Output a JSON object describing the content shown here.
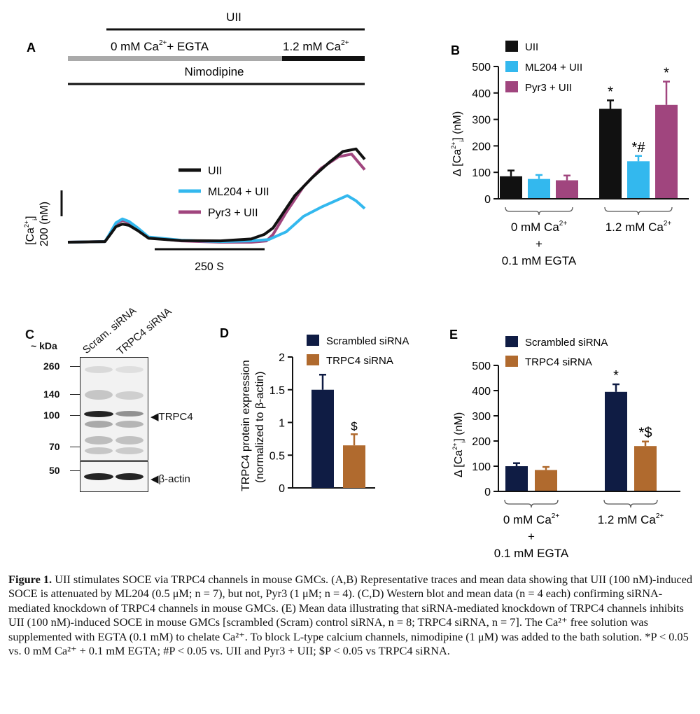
{
  "colors": {
    "uii": "#111111",
    "ml204": "#33b8ee",
    "pyr3": "#a0457e",
    "scrambled": "#0f1c44",
    "trpc4": "#b06a2e",
    "gray_bar": "#aaaaaa"
  },
  "panel_a": {
    "letter": "A",
    "top_label": "UII",
    "label_0ca": "0 mM Ca",
    "label_0ca_sup": "2+",
    "label_0ca_tail": "+ EGTA",
    "label_12ca": "1.2 mM Ca",
    "label_12ca_sup": "2+",
    "nimodipine_label": "Nimodipine",
    "ylabel_line1": "[Ca",
    "ylabel_sup": "2+",
    "ylabel_sub": "i",
    "ylabel_close": "]",
    "ylabel_line2": "200 (nM)",
    "xscale_label": "250 S",
    "legend": [
      "UII",
      "ML204 + UII",
      "Pyr3 + UII"
    ]
  },
  "panel_c": {
    "letter": "C",
    "kda_label": "~ kDa",
    "lane_labels": [
      "Scram. siRNA",
      "TRPC4 siRNA"
    ],
    "markers": [
      "260",
      "140",
      "100",
      "70",
      "50"
    ],
    "band_labels": [
      "TRPC4",
      "β-actin"
    ]
  },
  "caption": {
    "head": "Figure 1.",
    "body": "UII stimulates SOCE via TRPC4 channels in mouse GMCs. (A,B) Representative traces and mean data showing that UII (100 nM)-induced SOCE is attenuated by ML204 (0.5 μM; n = 7), but not, Pyr3 (1 μM; n = 4). (C,D) Western blot and mean data (n = 4 each) confirming siRNA-mediated knockdown of TRPC4 channels in mouse GMCs. (E) Mean data illustrating that siRNA-mediated knockdown of TRPC4 channels inhibits UII (100 nM)-induced SOCE in mouse GMCs [scrambled (Scram) control siRNA, n = 8; TRPC4 siRNA, n = 7]. The Ca²⁺ free solution was supplemented with EGTA (0.1 mM) to chelate Ca²⁺. To block L-type calcium channels, nimodipine (1 μM) was added to the bath solution. *P < 0.05 vs. 0 mM Ca²⁺ + 0.1 mM EGTA; #P < 0.05 vs. UII and Pyr3 + UII; $P < 0.05 vs TRPC4 siRNA."
  },
  "chart_data": [
    {
      "panel": "A",
      "type": "line",
      "x_unit": "s",
      "scale_bars": {
        "x": 250,
        "x_label": "250 S",
        "y": 200,
        "y_label": "200 (nM)"
      },
      "conditions": [
        {
          "label": "0 mM Ca2+ + EGTA",
          "x_range": [
            0,
            460
          ]
        },
        {
          "label": "1.2 mM Ca2+",
          "x_range": [
            460,
            680
          ]
        }
      ],
      "series": [
        {
          "name": "UII",
          "x": [
            0,
            85,
            95,
            110,
            125,
            140,
            160,
            185,
            260,
            350,
            420,
            450,
            470,
            520,
            560,
            600,
            630,
            660,
            680
          ],
          "y": [
            0,
            5,
            50,
            120,
            140,
            130,
            90,
            30,
            12,
            10,
            25,
            60,
            110,
            360,
            500,
            620,
            700,
            720,
            640
          ]
        },
        {
          "name": "ML204 + UII",
          "x": [
            0,
            85,
            95,
            110,
            125,
            140,
            160,
            185,
            260,
            350,
            420,
            460,
            500,
            540,
            580,
            620,
            640,
            660,
            680
          ],
          "y": [
            0,
            5,
            60,
            150,
            180,
            160,
            110,
            40,
            15,
            5,
            10,
            20,
            80,
            200,
            270,
            330,
            360,
            320,
            260
          ]
        },
        {
          "name": "Pyr3 + UII",
          "x": [
            0,
            85,
            95,
            110,
            125,
            140,
            160,
            185,
            260,
            350,
            420,
            455,
            470,
            500,
            540,
            580,
            620,
            650,
            680
          ],
          "y": [
            0,
            5,
            55,
            140,
            170,
            150,
            100,
            35,
            10,
            0,
            0,
            10,
            60,
            230,
            430,
            570,
            660,
            680,
            560
          ]
        }
      ]
    },
    {
      "panel": "B",
      "type": "bar",
      "ylabel": "Δ [Ca2+]i (nM)",
      "ylim": [
        0,
        500
      ],
      "yticks": [
        0,
        100,
        200,
        300,
        400,
        500
      ],
      "groups": [
        "0 mM Ca2+ + 0.1 mM EGTA",
        "1.2 mM Ca2+"
      ],
      "group_label_lines": [
        [
          "0 mM Ca",
          "+",
          "0.1 mM EGTA"
        ],
        [
          "1.2 mM Ca"
        ]
      ],
      "series": [
        {
          "name": "UII",
          "values": [
            85,
            340
          ],
          "errors": [
            22,
            32
          ],
          "annotations": [
            "",
            "*"
          ]
        },
        {
          "name": "ML204 + UII",
          "values": [
            75,
            142
          ],
          "errors": [
            15,
            20
          ],
          "annotations": [
            "",
            "*#"
          ]
        },
        {
          "name": "Pyr3 + UII",
          "values": [
            70,
            355
          ],
          "errors": [
            18,
            88
          ],
          "annotations": [
            "",
            "*"
          ]
        }
      ]
    },
    {
      "panel": "D",
      "type": "bar",
      "ylabel_lines": [
        "TRPC4 protein expression",
        "(normalized to β-actin)"
      ],
      "ylim": [
        0,
        2
      ],
      "yticks": [
        "0",
        "0.5",
        "1",
        "1.5",
        "2"
      ],
      "ytick_values": [
        0,
        0.5,
        1,
        1.5,
        2
      ],
      "series": [
        {
          "name": "Scrambled siRNA",
          "values": [
            1.5
          ],
          "errors": [
            0.23
          ],
          "annotations": [
            ""
          ]
        },
        {
          "name": "TRPC4 siRNA",
          "values": [
            0.65
          ],
          "errors": [
            0.17
          ],
          "annotations": [
            "$"
          ]
        }
      ]
    },
    {
      "panel": "E",
      "type": "bar",
      "ylabel": "Δ [Ca2+]i (nM)",
      "ylim": [
        0,
        500
      ],
      "yticks": [
        0,
        100,
        200,
        300,
        400,
        500
      ],
      "groups": [
        "0 mM Ca2+ + 0.1 mM EGTA",
        "1.2 mM Ca2+"
      ],
      "group_label_lines": [
        [
          "0 mM Ca",
          "+",
          "0.1 mM EGTA"
        ],
        [
          "1.2 mM Ca"
        ]
      ],
      "series": [
        {
          "name": "Scrambled siRNA",
          "values": [
            100,
            395
          ],
          "errors": [
            12,
            30
          ],
          "annotations": [
            "",
            "*"
          ]
        },
        {
          "name": "TRPC4 siRNA",
          "values": [
            85,
            180
          ],
          "errors": [
            12,
            18
          ],
          "annotations": [
            "",
            "*$"
          ]
        }
      ]
    }
  ]
}
